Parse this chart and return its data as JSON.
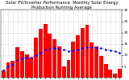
{
  "title": "Solar PV/Inverter Performance  Monthly Solar Energy Production Running Average",
  "bar_values": [
    3.2,
    6.8,
    7.5,
    13.5,
    11.8,
    10.2,
    8.9,
    17.8,
    21.5,
    23.8,
    19.5,
    17.2,
    13.8,
    5.2,
    7.8,
    16.0,
    18.8,
    22.2,
    23.5,
    15.8,
    14.0,
    9.8,
    6.2,
    3.5,
    1.8,
    3.9
  ],
  "running_avg": [
    3.2,
    5.0,
    5.8,
    7.8,
    8.6,
    8.9,
    9.0,
    10.1,
    11.2,
    12.3,
    12.9,
    13.0,
    12.8,
    12.3,
    11.9,
    12.0,
    12.4,
    13.0,
    13.5,
    13.4,
    13.3,
    13.0,
    12.6,
    12.1,
    11.6,
    11.2
  ],
  "bar_color": "#ff0000",
  "avg_color": "#0000ff",
  "bg_color": "#ffffff",
  "grid_color": "#aaaaaa",
  "ylim": [
    0,
    30
  ],
  "yticks": [
    5,
    10,
    15,
    20,
    25,
    30
  ],
  "ytick_labels": [
    "5",
    "10",
    "15",
    "20",
    "25",
    "30"
  ],
  "title_fontsize": 3.8,
  "tick_fontsize": 3.0
}
